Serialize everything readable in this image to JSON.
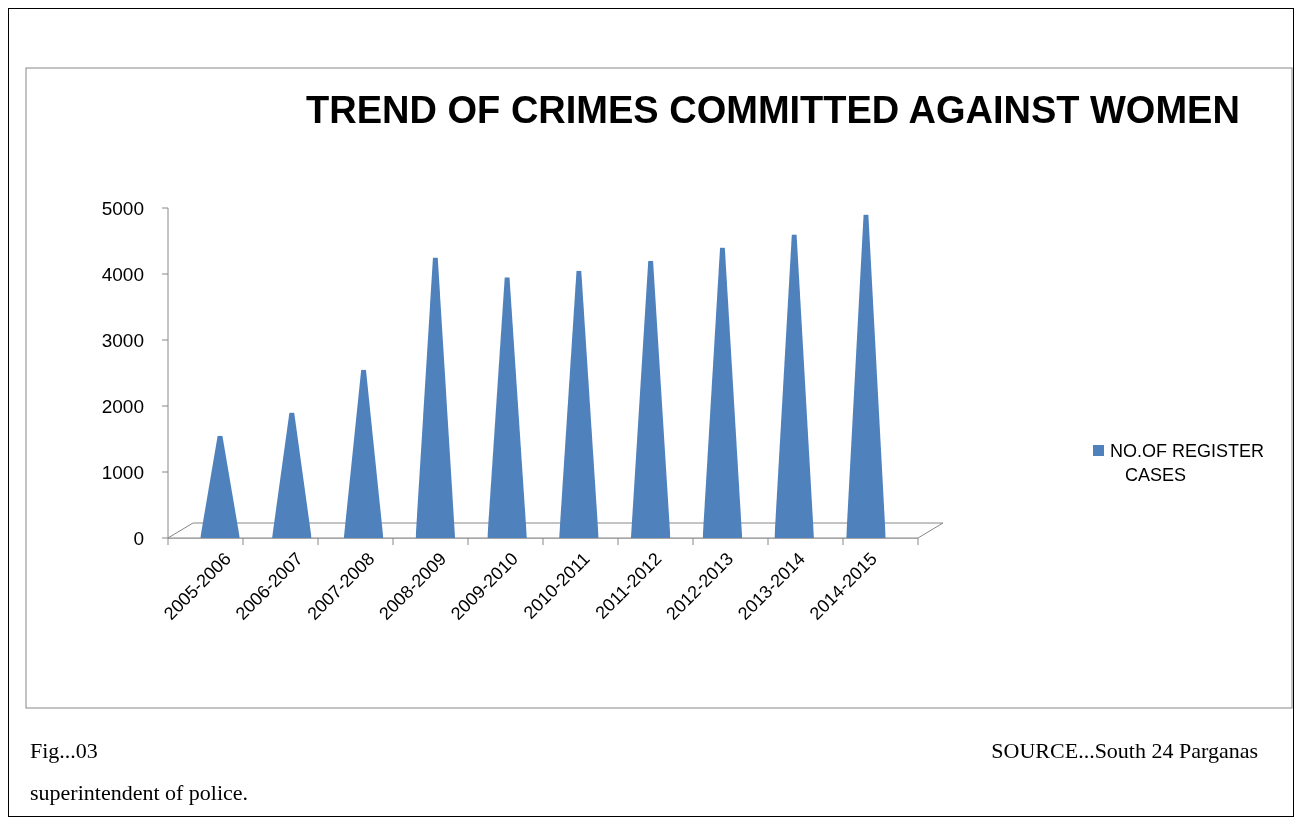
{
  "chart_data": {
    "type": "bar",
    "title": "TREND OF CRIMES COMMITTED AGAINST WOMEN",
    "categories": [
      "2005-2006",
      "2006-2007",
      "2007-2008",
      "2008-2009",
      "2009-2010",
      "2010-2011",
      "2011-2012",
      "2012-2013",
      "2013-2014",
      "2014-2015"
    ],
    "series": [
      {
        "name": "NO.OF REGISTER CASES",
        "color": "#4f81bd",
        "values": [
          1550,
          1900,
          2550,
          4250,
          3950,
          4050,
          4200,
          4400,
          4600,
          4900
        ]
      }
    ],
    "ylim": [
      0,
      5000
    ],
    "yticks": [
      0,
      1000,
      2000,
      3000,
      4000,
      5000
    ],
    "legend": "right",
    "annotations": [
      "Fig...03",
      "SOURCE...South 24 Parganas superintendent of police."
    ]
  }
}
